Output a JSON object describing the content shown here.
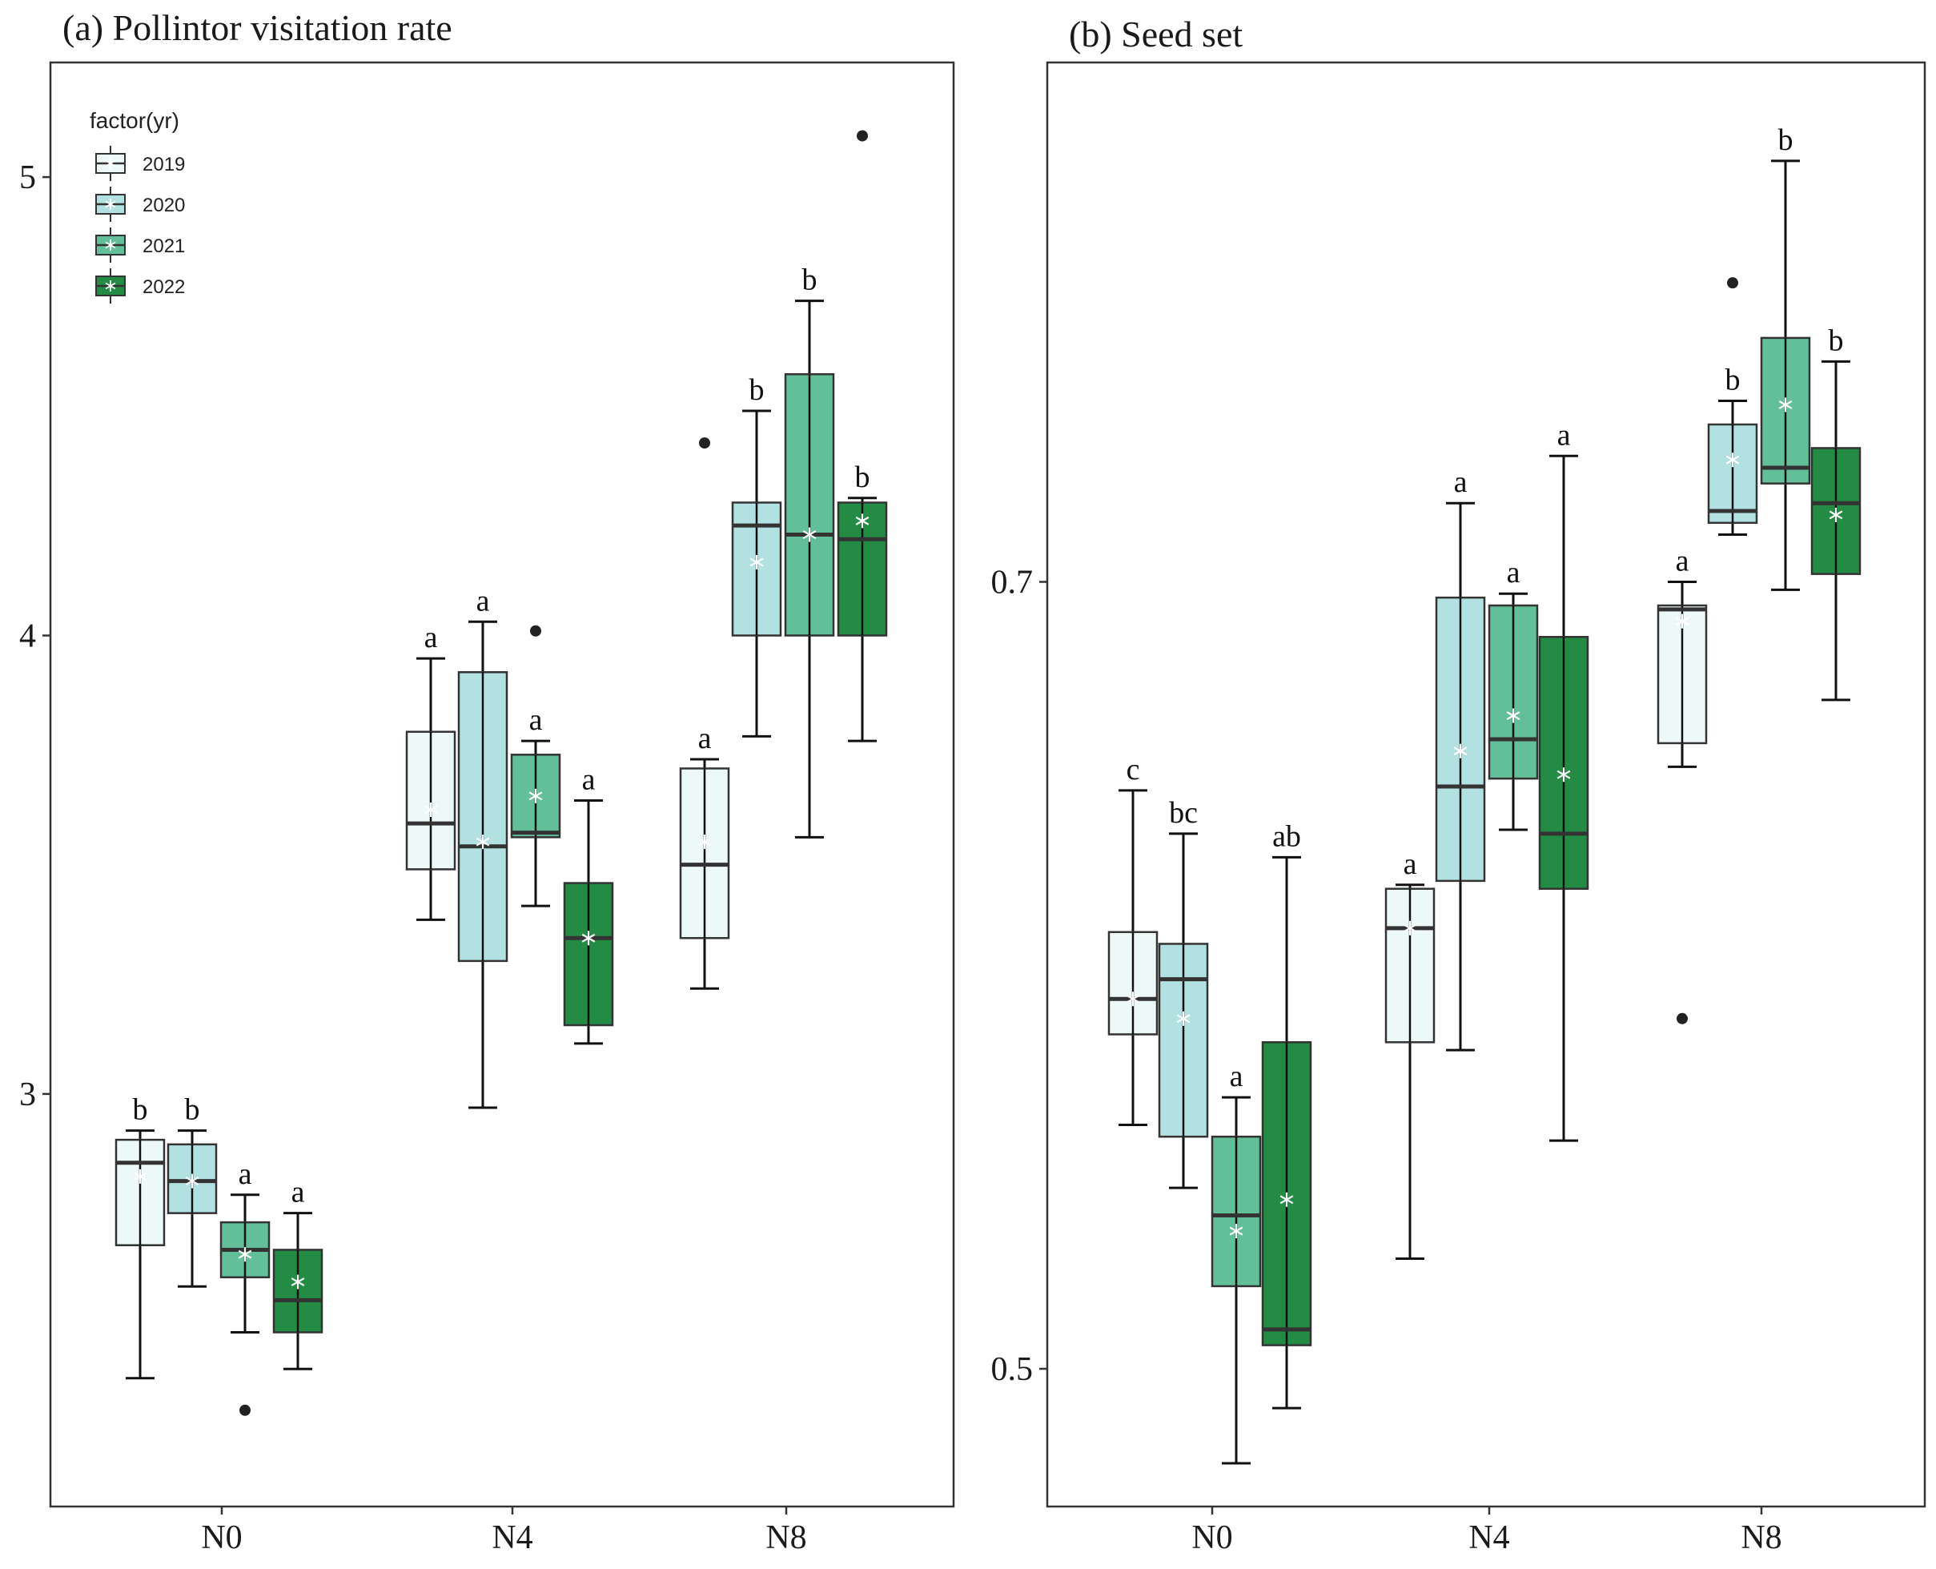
{
  "legend": {
    "title": "factor(yr)",
    "entries": [
      {
        "label": "2019",
        "color": "#edf8f9"
      },
      {
        "label": "2020",
        "color": "#b3e1e2"
      },
      {
        "label": "2021",
        "color": "#63bf99"
      },
      {
        "label": "2022",
        "color": "#238b44"
      }
    ]
  },
  "chart_data": [
    {
      "type": "box",
      "title": "(a) Pollintor visitation rate",
      "xlabel": "",
      "ylabel": "",
      "categories": [
        "N0",
        "N4",
        "N8"
      ],
      "ylim": [
        2.1,
        5.25
      ],
      "yticks": [
        {
          "value": 3,
          "label": "3"
        },
        {
          "value": 4,
          "label": "4"
        },
        {
          "value": 5,
          "label": "5"
        }
      ],
      "grid": false,
      "legend_position": "top-left",
      "series": [
        {
          "name": "2019",
          "color": "#edf8f9",
          "boxes": [
            {
              "category": "N0",
              "whisker_low": 2.38,
              "q1": 2.67,
              "median": 2.85,
              "q3": 2.9,
              "whisker_high": 2.92,
              "mean": 2.82,
              "outliers": [],
              "letter": "b"
            },
            {
              "category": "N4",
              "whisker_low": 3.38,
              "q1": 3.49,
              "median": 3.59,
              "q3": 3.79,
              "whisker_high": 3.95,
              "mean": 3.62,
              "outliers": [],
              "letter": "a"
            },
            {
              "category": "N8",
              "whisker_low": 3.23,
              "q1": 3.34,
              "median": 3.5,
              "q3": 3.71,
              "whisker_high": 3.73,
              "mean": 3.55,
              "outliers": [
                4.42
              ],
              "letter": "a"
            }
          ]
        },
        {
          "name": "2020",
          "color": "#b3e1e2",
          "boxes": [
            {
              "category": "N0",
              "whisker_low": 2.58,
              "q1": 2.74,
              "median": 2.81,
              "q3": 2.89,
              "whisker_high": 2.92,
              "mean": 2.81,
              "outliers": [],
              "letter": "b"
            },
            {
              "category": "N4",
              "whisker_low": 2.97,
              "q1": 3.29,
              "median": 3.54,
              "q3": 3.92,
              "whisker_high": 4.03,
              "mean": 3.55,
              "outliers": [],
              "letter": "a"
            },
            {
              "category": "N8",
              "whisker_low": 3.78,
              "q1": 4.0,
              "median": 4.24,
              "q3": 4.29,
              "whisker_high": 4.49,
              "mean": 4.16,
              "outliers": [],
              "letter": "b"
            }
          ]
        },
        {
          "name": "2021",
          "color": "#63bf99",
          "boxes": [
            {
              "category": "N0",
              "whisker_low": 2.48,
              "q1": 2.6,
              "median": 2.66,
              "q3": 2.72,
              "whisker_high": 2.78,
              "mean": 2.65,
              "outliers": [
                2.31
              ],
              "letter": "a"
            },
            {
              "category": "N4",
              "whisker_low": 3.41,
              "q1": 3.56,
              "median": 3.57,
              "q3": 3.74,
              "whisker_high": 3.77,
              "mean": 3.65,
              "outliers": [
                4.01
              ],
              "letter": "a"
            },
            {
              "category": "N8",
              "whisker_low": 3.56,
              "q1": 4.0,
              "median": 4.22,
              "q3": 4.57,
              "whisker_high": 4.73,
              "mean": 4.22,
              "outliers": [],
              "letter": "b"
            }
          ]
        },
        {
          "name": "2022",
          "color": "#238b44",
          "boxes": [
            {
              "category": "N0",
              "whisker_low": 2.4,
              "q1": 2.48,
              "median": 2.55,
              "q3": 2.66,
              "whisker_high": 2.74,
              "mean": 2.59,
              "outliers": [],
              "letter": "a"
            },
            {
              "category": "N4",
              "whisker_low": 3.11,
              "q1": 3.15,
              "median": 3.34,
              "q3": 3.46,
              "whisker_high": 3.64,
              "mean": 3.34,
              "outliers": [],
              "letter": "a"
            },
            {
              "category": "N8",
              "whisker_low": 3.77,
              "q1": 4.0,
              "median": 4.21,
              "q3": 4.29,
              "whisker_high": 4.3,
              "mean": 4.25,
              "outliers": [
                5.09
              ],
              "letter": "b"
            }
          ]
        }
      ]
    },
    {
      "type": "box",
      "title": "(b) Seed set",
      "xlabel": "",
      "ylabel": "",
      "categories": [
        "N0",
        "N4",
        "N8"
      ],
      "ylim": [
        0.465,
        0.832
      ],
      "yticks": [
        {
          "value": 0.5,
          "label": "0.5"
        },
        {
          "value": 0.7,
          "label": "0.7"
        }
      ],
      "grid": false,
      "legend_position": "none",
      "series": [
        {
          "name": "2019",
          "color": "#edf8f9",
          "boxes": [
            {
              "category": "N0",
              "whisker_low": 0.562,
              "q1": 0.585,
              "median": 0.594,
              "q3": 0.611,
              "whisker_high": 0.647,
              "mean": 0.594,
              "outliers": [],
              "letter": "c"
            },
            {
              "category": "N4",
              "whisker_low": 0.528,
              "q1": 0.583,
              "median": 0.612,
              "q3": 0.622,
              "whisker_high": 0.623,
              "mean": 0.612,
              "outliers": [],
              "letter": "a"
            },
            {
              "category": "N8",
              "whisker_low": 0.653,
              "q1": 0.659,
              "median": 0.693,
              "q3": 0.694,
              "whisker_high": 0.7,
              "mean": 0.69,
              "outliers": [
                0.589
              ],
              "letter": "a"
            }
          ]
        },
        {
          "name": "2020",
          "color": "#b3e1e2",
          "boxes": [
            {
              "category": "N0",
              "whisker_low": 0.546,
              "q1": 0.559,
              "median": 0.599,
              "q3": 0.608,
              "whisker_high": 0.636,
              "mean": 0.589,
              "outliers": [],
              "letter": "bc"
            },
            {
              "category": "N4",
              "whisker_low": 0.581,
              "q1": 0.624,
              "median": 0.648,
              "q3": 0.696,
              "whisker_high": 0.72,
              "mean": 0.657,
              "outliers": [],
              "letter": "a"
            },
            {
              "category": "N8",
              "whisker_low": 0.712,
              "q1": 0.715,
              "median": 0.718,
              "q3": 0.74,
              "whisker_high": 0.746,
              "mean": 0.731,
              "outliers": [
                0.776
              ],
              "letter": "b"
            }
          ]
        },
        {
          "name": "2021",
          "color": "#63bf99",
          "boxes": [
            {
              "category": "N0",
              "whisker_low": 0.476,
              "q1": 0.521,
              "median": 0.539,
              "q3": 0.559,
              "whisker_high": 0.569,
              "mean": 0.535,
              "outliers": [],
              "letter": "a"
            },
            {
              "category": "N4",
              "whisker_low": 0.637,
              "q1": 0.65,
              "median": 0.66,
              "q3": 0.694,
              "whisker_high": 0.697,
              "mean": 0.666,
              "outliers": [],
              "letter": "a"
            },
            {
              "category": "N8",
              "whisker_low": 0.698,
              "q1": 0.725,
              "median": 0.729,
              "q3": 0.762,
              "whisker_high": 0.807,
              "mean": 0.745,
              "outliers": [],
              "letter": "b"
            }
          ]
        },
        {
          "name": "2022",
          "color": "#238b44",
          "boxes": [
            {
              "category": "N0",
              "whisker_low": 0.49,
              "q1": 0.506,
              "median": 0.51,
              "q3": 0.583,
              "whisker_high": 0.63,
              "mean": 0.543,
              "outliers": [],
              "letter": "ab"
            },
            {
              "category": "N4",
              "whisker_low": 0.558,
              "q1": 0.622,
              "median": 0.636,
              "q3": 0.686,
              "whisker_high": 0.732,
              "mean": 0.651,
              "outliers": [],
              "letter": "a"
            },
            {
              "category": "N8",
              "whisker_low": 0.67,
              "q1": 0.702,
              "median": 0.72,
              "q3": 0.734,
              "whisker_high": 0.756,
              "mean": 0.717,
              "outliers": [],
              "letter": "b"
            }
          ]
        }
      ]
    }
  ]
}
